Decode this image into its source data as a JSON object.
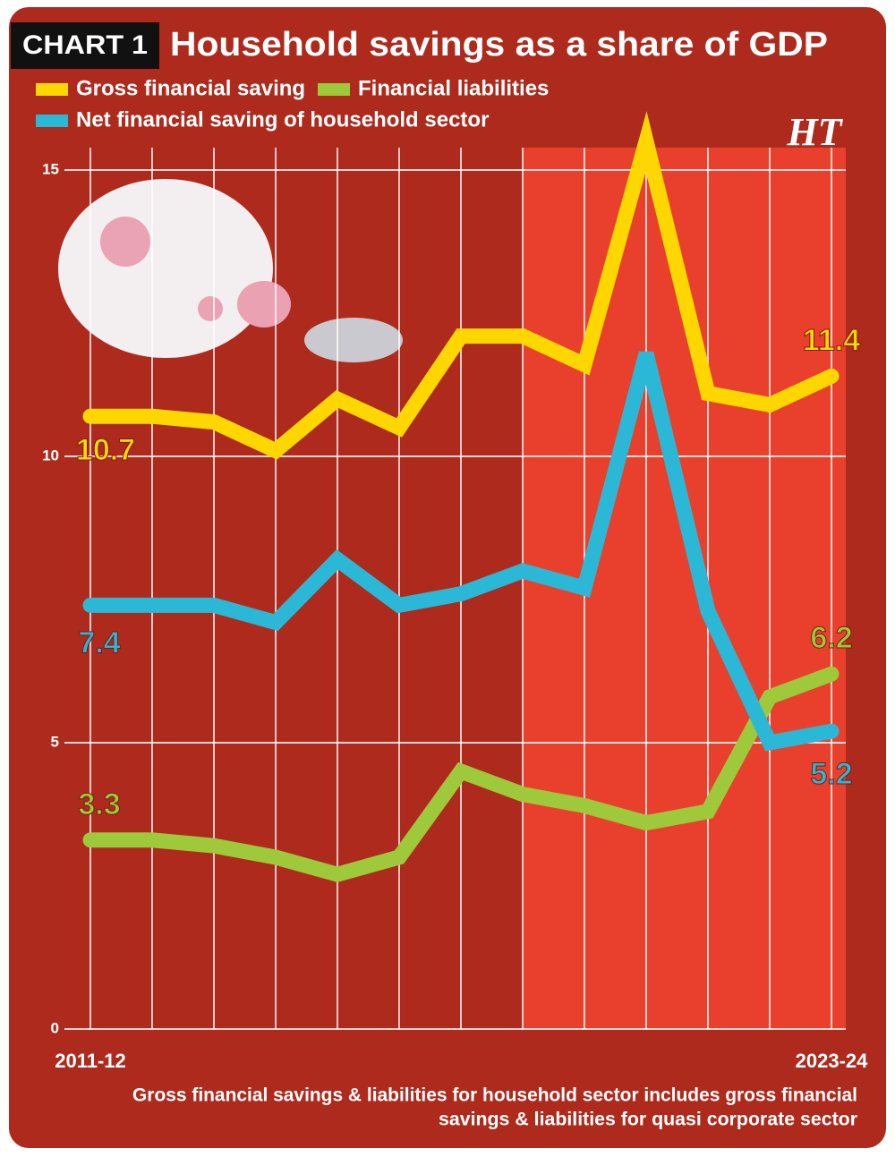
{
  "chart_data": {
    "type": "line",
    "badge": "CHART 1",
    "title": "Household savings as a share of GDP",
    "logo": "HT",
    "categories": [
      "2011-12",
      null,
      null,
      null,
      null,
      null,
      null,
      null,
      null,
      null,
      null,
      null,
      "2023-24"
    ],
    "series": [
      {
        "name": "Gross financial saving",
        "color": "#ffd700",
        "values": [
          10.7,
          10.7,
          10.6,
          10.1,
          11.0,
          10.5,
          12.1,
          12.1,
          11.6,
          15.5,
          11.1,
          10.9,
          11.4
        ]
      },
      {
        "name": "Financial liabilities",
        "color": "#9dc93b",
        "values": [
          3.3,
          3.3,
          3.2,
          3.0,
          2.7,
          3.0,
          4.5,
          4.1,
          3.9,
          3.6,
          3.8,
          5.8,
          6.2
        ]
      },
      {
        "name": "Net financial saving of household sector",
        "color": "#2bb8d6",
        "values": [
          7.4,
          7.4,
          7.4,
          7.1,
          8.2,
          7.4,
          7.6,
          8.0,
          7.7,
          11.8,
          7.3,
          5.0,
          5.2
        ]
      }
    ],
    "data_labels": "ends",
    "ylim": [
      0,
      15
    ],
    "yticks": [
      0,
      5,
      10,
      15
    ],
    "grid": true,
    "footnote": [
      "Gross financial savings & liabilities for household sector includes gross financial",
      "savings & liabilities for quasi corporate sector"
    ]
  }
}
